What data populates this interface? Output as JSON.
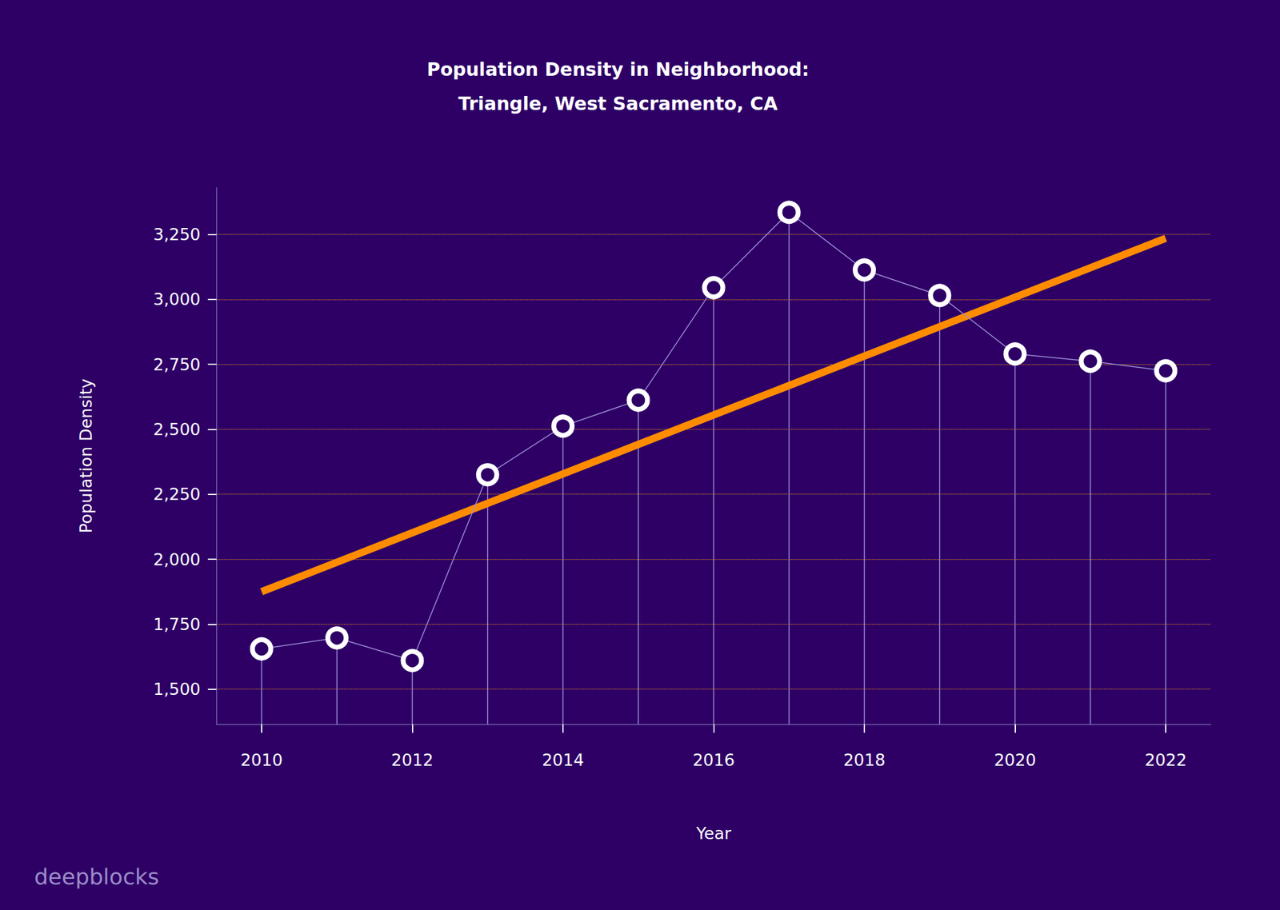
{
  "chart_data": {
    "type": "line",
    "title": "Population Density in Neighborhood:\nTriangle, West Sacramento, CA",
    "x_label": "Year",
    "y_label": "Population Density",
    "source": "deepblocks",
    "x": [
      2010,
      2011,
      2012,
      2013,
      2014,
      2015,
      2016,
      2017,
      2018,
      2019,
      2020,
      2021,
      2022
    ],
    "values": [
      1655,
      1697,
      1610,
      2325,
      2512,
      2612,
      3045,
      3335,
      3113,
      3015,
      2790,
      2762,
      2725
    ],
    "color": "#ffffff",
    "marker": "circle",
    "trend": {
      "x": [
        2010,
        2022
      ],
      "values": [
        1875,
        3235
      ],
      "color": "#ff8c00"
    },
    "xlim": [
      2009.4,
      2022.6
    ],
    "xticks": [
      2010,
      2012,
      2014,
      2016,
      2018,
      2020,
      2022
    ],
    "ylim": [
      1365,
      3430
    ],
    "yticks": [
      {
        "value": 1500,
        "label": "1,500"
      },
      {
        "value": 1750,
        "label": "1,750"
      },
      {
        "value": 2000,
        "label": "2,000"
      },
      {
        "value": 2250,
        "label": "2,250"
      },
      {
        "value": 2500,
        "label": "2,500"
      },
      {
        "value": 2750,
        "label": "2,750"
      },
      {
        "value": 3000,
        "label": "3,000"
      },
      {
        "value": 3250,
        "label": "3,250"
      }
    ],
    "grid": true
  }
}
